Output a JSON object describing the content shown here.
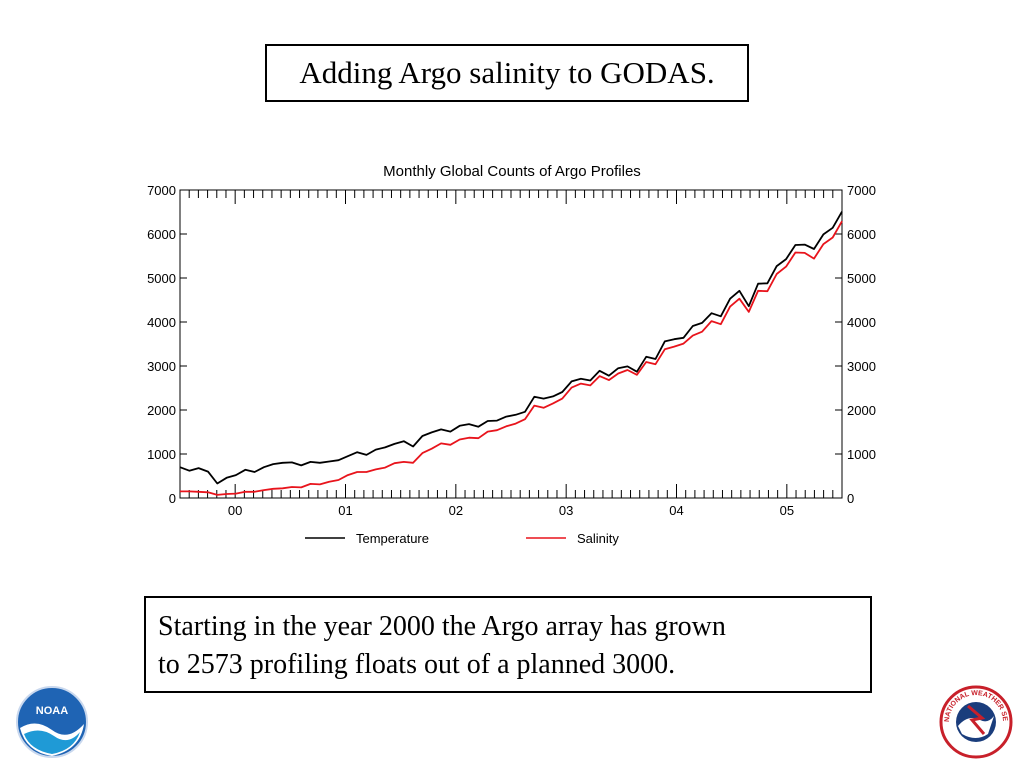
{
  "slide": {
    "title": "Adding Argo salinity to GODAS.",
    "caption_line1": "Starting in the year 2000 the Argo array has grown",
    "caption_line2": "to 2573 profiling floats out of a planned 3000."
  },
  "logos": {
    "noaa_text": "NOAA",
    "nws_text": "NATIONAL WEATHER SERVICE"
  },
  "chart_data": {
    "type": "line",
    "title": "Monthly Global Counts of Argo Profiles",
    "xlabel": "",
    "ylabel": "",
    "x_start": 1999.5,
    "x_end": 2005.5,
    "xlim": [
      1999.5,
      2005.5
    ],
    "ylim": [
      0,
      7000
    ],
    "y_ticks": [
      0,
      1000,
      2000,
      3000,
      4000,
      5000,
      6000,
      7000
    ],
    "x_tick_labels": [
      {
        "label": "00",
        "x": 2000.0
      },
      {
        "label": "01",
        "x": 2001.0
      },
      {
        "label": "02",
        "x": 2002.0
      },
      {
        "label": "03",
        "x": 2003.0
      },
      {
        "label": "04",
        "x": 2004.0
      },
      {
        "label": "05",
        "x": 2005.0
      }
    ],
    "legend_position": "bottom",
    "series": [
      {
        "name": "Temperature",
        "color": "#000000",
        "values": [
          700,
          620,
          680,
          600,
          330,
          460,
          520,
          640,
          590,
          700,
          770,
          800,
          810,
          740,
          820,
          800,
          830,
          860,
          950,
          1040,
          980,
          1100,
          1150,
          1230,
          1290,
          1170,
          1410,
          1490,
          1560,
          1510,
          1640,
          1680,
          1620,
          1750,
          1760,
          1850,
          1890,
          1960,
          2300,
          2260,
          2310,
          2410,
          2650,
          2710,
          2670,
          2890,
          2780,
          2950,
          2990,
          2870,
          3210,
          3160,
          3560,
          3610,
          3640,
          3910,
          3980,
          4200,
          4130,
          4530,
          4710,
          4360,
          4870,
          4880,
          5270,
          5430,
          5750,
          5760,
          5660,
          5990,
          6140,
          6510
        ]
      },
      {
        "name": "Salinity",
        "color": "#e8141c",
        "values": [
          150,
          150,
          140,
          130,
          70,
          90,
          100,
          140,
          140,
          180,
          210,
          220,
          250,
          240,
          320,
          310,
          370,
          410,
          520,
          590,
          590,
          650,
          690,
          790,
          820,
          800,
          1020,
          1120,
          1240,
          1210,
          1330,
          1370,
          1360,
          1510,
          1540,
          1630,
          1690,
          1790,
          2100,
          2050,
          2150,
          2260,
          2510,
          2600,
          2560,
          2770,
          2680,
          2830,
          2910,
          2800,
          3090,
          3040,
          3380,
          3440,
          3510,
          3690,
          3780,
          4020,
          3950,
          4350,
          4530,
          4230,
          4710,
          4700,
          5090,
          5260,
          5580,
          5570,
          5440,
          5770,
          5920,
          6290
        ]
      }
    ]
  }
}
